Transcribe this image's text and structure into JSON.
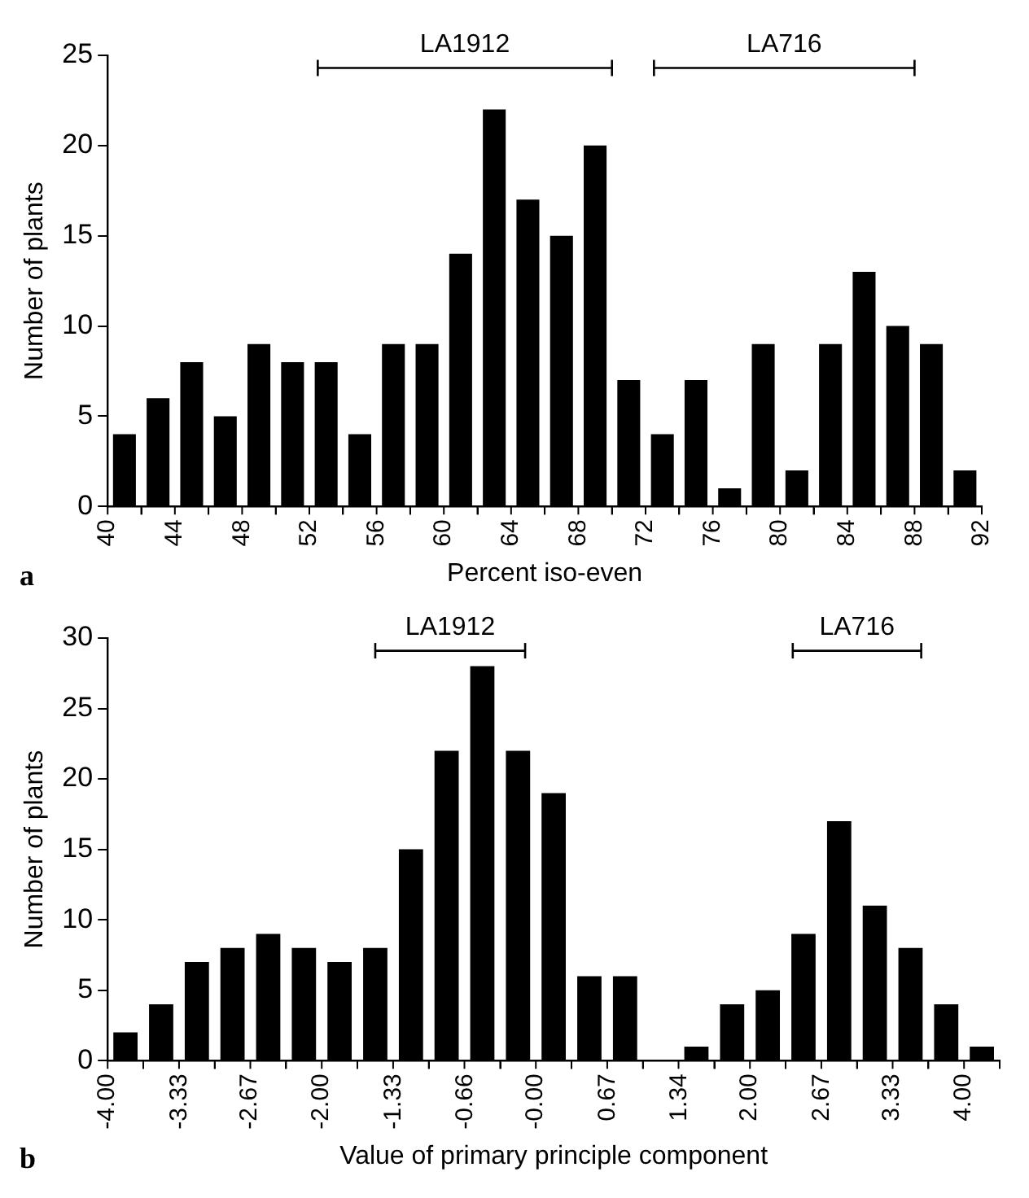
{
  "chart_data": [
    {
      "type": "histogram",
      "xlabel": "Percent iso-even",
      "ylabel": "Number of plants",
      "annotations": [
        "a",
        {
          "text": "LA1912",
          "x": 61.25,
          "y": 24.3
        },
        {
          "text": "LA716",
          "x": 80.25,
          "y": 24.3
        }
      ],
      "bins": [
        40,
        42,
        44,
        46,
        48,
        50,
        52,
        54,
        56,
        58,
        60,
        62,
        64,
        66,
        68,
        70,
        72,
        74,
        76,
        78,
        80,
        82,
        84,
        86,
        88,
        90,
        92
      ],
      "values": [
        4,
        6,
        8,
        5,
        9,
        8,
        8,
        4,
        9,
        9,
        14,
        22,
        17,
        15,
        20,
        7,
        4,
        7,
        1,
        9,
        2,
        9,
        13,
        10,
        9,
        2
      ],
      "color": "#000000",
      "xlim": [
        40,
        92
      ],
      "xticks": [
        40,
        44,
        48,
        52,
        56,
        60,
        64,
        68,
        72,
        76,
        80,
        84,
        88,
        92
      ],
      "ylim": [
        0,
        25
      ],
      "yticks": [
        0,
        5,
        10,
        15,
        20,
        25
      ],
      "series": [
        {
          "type": "line",
          "color": "#000000",
          "marker": "none",
          "x": [
            52.5,
            70
          ],
          "values": [
            24.3,
            24.3
          ],
          "errors": [
            0.45,
            0.45
          ]
        },
        {
          "type": "line",
          "color": "#000000",
          "marker": "none",
          "x": [
            72.5,
            88
          ],
          "values": [
            24.3,
            24.3
          ],
          "errors": [
            0.45,
            0.45
          ]
        }
      ]
    },
    {
      "type": "histogram",
      "xlabel": "Value of primary principle component",
      "ylabel": "Number of plants",
      "annotations": [
        "b",
        {
          "text": "LA1912",
          "x": -0.8,
          "y": 29.1
        },
        {
          "text": "LA716",
          "x": 3,
          "y": 29.1
        }
      ],
      "bins": [
        -4,
        -3.667,
        -3.333,
        -3,
        -2.667,
        -2.333,
        -2,
        -1.667,
        -1.333,
        -1,
        -0.667,
        -0.333,
        0,
        0.333,
        0.667,
        1,
        1.333,
        1.667,
        2,
        2.333,
        2.667,
        3,
        3.333,
        3.667,
        4,
        4.333
      ],
      "values": [
        2,
        4,
        7,
        8,
        9,
        8,
        7,
        8,
        15,
        22,
        28,
        22,
        19,
        6,
        6,
        0,
        1,
        4,
        5,
        9,
        17,
        11,
        8,
        4,
        1
      ],
      "color": "#000000",
      "xlim": [
        -4,
        4.333
      ],
      "xticks": [
        {
          "value": -4,
          "label": "-4.00"
        },
        {
          "value": -3.33,
          "label": "-3.33"
        },
        {
          "value": -2.67,
          "label": "-2.67"
        },
        {
          "value": -2,
          "label": "-2.00"
        },
        {
          "value": -1.33,
          "label": "-1.33"
        },
        {
          "value": -0.66,
          "label": "-0.66"
        },
        {
          "value": 0,
          "label": "-0.00"
        },
        {
          "value": 0.67,
          "label": "0.67"
        },
        {
          "value": 1.34,
          "label": "1.34"
        },
        {
          "value": 2,
          "label": "2.00"
        },
        {
          "value": 2.67,
          "label": "2.67"
        },
        {
          "value": 3.33,
          "label": "3.33"
        },
        {
          "value": 4,
          "label": "4.00"
        }
      ],
      "ylim": [
        0,
        30
      ],
      "yticks": [
        0,
        5,
        10,
        15,
        20,
        25,
        30
      ],
      "series": [
        {
          "type": "line",
          "color": "#000000",
          "marker": "none",
          "x": [
            -1.5,
            -0.1
          ],
          "values": [
            29.1,
            29.1
          ],
          "errors": [
            0.55,
            0.55
          ]
        },
        {
          "type": "line",
          "color": "#000000",
          "marker": "none",
          "x": [
            2.4,
            3.6
          ],
          "values": [
            29.1,
            29.1
          ],
          "errors": [
            0.55,
            0.55
          ]
        }
      ]
    }
  ]
}
